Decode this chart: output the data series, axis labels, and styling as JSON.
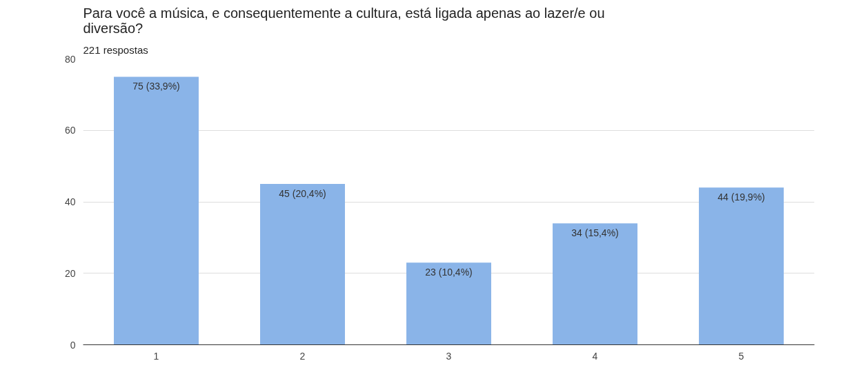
{
  "chart_data": {
    "type": "bar",
    "title": "Para você a música, e consequentemente a cultura, está ligada apenas ao lazer/e ou diversão?",
    "subtitle": "221 respostas",
    "categories": [
      "1",
      "2",
      "3",
      "4",
      "5"
    ],
    "values": [
      75,
      45,
      23,
      34,
      44
    ],
    "value_labels": [
      "75 (33,9%)",
      "45 (20,4%)",
      "23 (10,4%)",
      "34 (15,4%)",
      "44 (19,9%)"
    ],
    "color": "#8ab4e8",
    "ylim": [
      0,
      80
    ],
    "yticks": [
      0,
      20,
      40,
      60,
      80
    ],
    "grid": "y"
  }
}
